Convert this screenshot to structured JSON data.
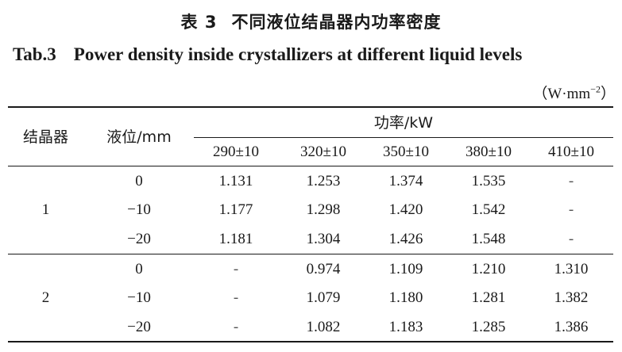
{
  "title_cn": {
    "label": "表 3",
    "text": "不同液位结晶器内功率密度"
  },
  "title_en": {
    "label": "Tab.3",
    "text": "Power density inside crystallizers at different liquid levels"
  },
  "unit": {
    "base": "（W·mm",
    "exp": "−2",
    "close": "）"
  },
  "header": {
    "col1": "结晶器",
    "col2": "液位/mm",
    "power_group": "功率/kW",
    "power_cols": [
      "290±10",
      "320±10",
      "350±10",
      "380±10",
      "410±10"
    ]
  },
  "table": {
    "groups": [
      {
        "crystallizer": "1",
        "rows": [
          {
            "level": "0",
            "values": [
              "1.131",
              "1.253",
              "1.374",
              "1.535",
              "-"
            ]
          },
          {
            "level": "−10",
            "values": [
              "1.177",
              "1.298",
              "1.420",
              "1.542",
              "-"
            ]
          },
          {
            "level": "−20",
            "values": [
              "1.181",
              "1.304",
              "1.426",
              "1.548",
              "-"
            ]
          }
        ]
      },
      {
        "crystallizer": "2",
        "rows": [
          {
            "level": "0",
            "values": [
              "-",
              "0.974",
              "1.109",
              "1.210",
              "1.310"
            ]
          },
          {
            "level": "−10",
            "values": [
              "-",
              "1.079",
              "1.180",
              "1.281",
              "1.382"
            ]
          },
          {
            "level": "−20",
            "values": [
              "-",
              "1.082",
              "1.183",
              "1.285",
              "1.386"
            ]
          }
        ]
      }
    ]
  }
}
